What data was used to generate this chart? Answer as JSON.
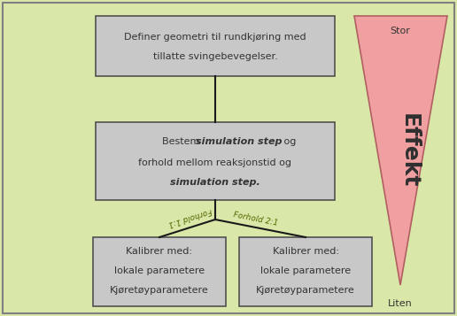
{
  "bg_color": "#d9e8a8",
  "border_color": "#808080",
  "box_fill": "#c8c8c8",
  "box_edge": "#505050",
  "triangle_fill_top": "#f0a0a0",
  "triangle_fill_bot": "#f8c8c8",
  "triangle_edge": "#b06060",
  "effekt_color": "#303030",
  "line_color": "#1a1a1a",
  "text_color": "#333333",
  "label_color": "#556600",
  "box1_line1": "Definer geometri til rundkjøring med",
  "box1_line2": "tillatte svingebevegelser.",
  "box2_line2": "forhold mellom reaksjonstid og",
  "box3_line1": "Kalibrer med:",
  "box3_line2": "lokale parametere",
  "box3_line3": "Kjøretøyparametere",
  "label1": "Forhold 1:1",
  "label2": "Forhold 2:1",
  "effekt_label": "Effekt",
  "stor_label": "Stor",
  "liten_label": "Liten",
  "fig_w": 5.16,
  "fig_h": 3.57,
  "dpi": 100
}
